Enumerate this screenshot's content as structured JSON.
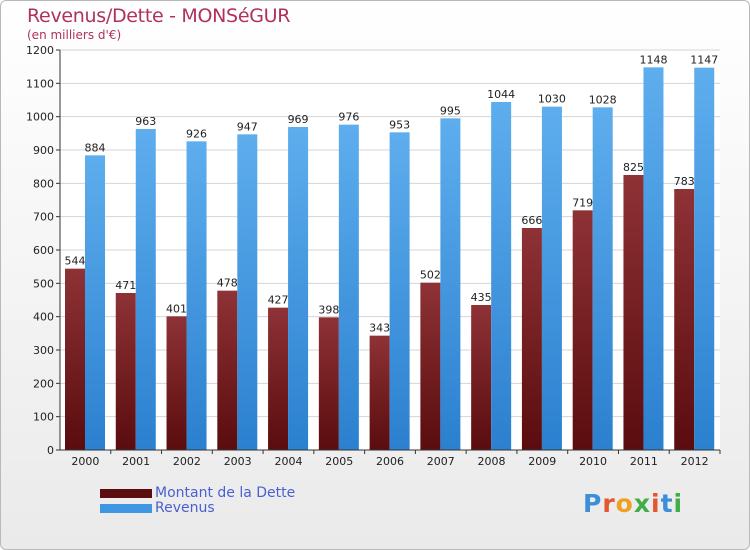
{
  "header": {
    "title": "Revenus/Dette - MONSéGUR",
    "subtitle": "(en milliers d'€)"
  },
  "colors": {
    "dette": "#7a1d20",
    "revenus": "#4a9ee6",
    "title": "#b03060"
  },
  "legend": {
    "dette_label": "Montant de la Dette",
    "revenus_label": "Revenus"
  },
  "logo": {
    "text": "Proxiti"
  },
  "chart_data": {
    "type": "bar",
    "title": "Revenus/Dette - MONSéGUR",
    "subtitle": "(en milliers d'€)",
    "categories": [
      "2000",
      "2001",
      "2002",
      "2003",
      "2004",
      "2005",
      "2006",
      "2007",
      "2008",
      "2009",
      "2010",
      "2011",
      "2012"
    ],
    "series": [
      {
        "name": "Montant de la Dette",
        "values": [
          544,
          471,
          401,
          478,
          427,
          398,
          343,
          502,
          435,
          666,
          719,
          825,
          783
        ]
      },
      {
        "name": "Revenus",
        "values": [
          884,
          963,
          926,
          947,
          969,
          976,
          953,
          995,
          1044,
          1030,
          1028,
          1148,
          1147
        ]
      }
    ],
    "yticks": [
      0,
      100,
      200,
      300,
      400,
      500,
      600,
      700,
      800,
      900,
      1000,
      1100,
      1200
    ],
    "ylim": [
      0,
      1200
    ],
    "grid": true,
    "legend_position": "bottom-left"
  }
}
